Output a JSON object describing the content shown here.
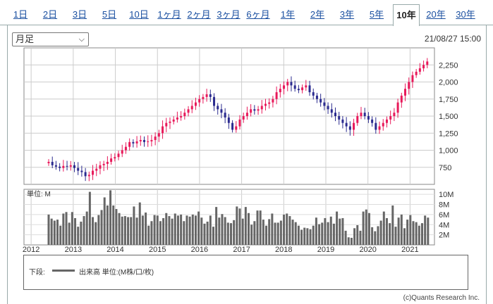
{
  "tabs": [
    {
      "label": "1日",
      "active": false
    },
    {
      "label": "2日",
      "active": false
    },
    {
      "label": "3日",
      "active": false
    },
    {
      "label": "5日",
      "active": false
    },
    {
      "label": "10日",
      "active": false
    },
    {
      "label": "1ヶ月",
      "active": false
    },
    {
      "label": "2ヶ月",
      "active": false
    },
    {
      "label": "3ヶ月",
      "active": false
    },
    {
      "label": "6ヶ月",
      "active": false
    },
    {
      "label": "1年",
      "active": false
    },
    {
      "label": "2年",
      "active": false
    },
    {
      "label": "3年",
      "active": false
    },
    {
      "label": "5年",
      "active": false
    },
    {
      "label": "10年",
      "active": true
    },
    {
      "label": "20年",
      "active": false
    },
    {
      "label": "30年",
      "active": false
    }
  ],
  "period_select": {
    "value": "月足"
  },
  "timestamp": "21/08/27 15:00",
  "chart_data": [
    {
      "type": "candlestick",
      "ylim": [
        500,
        2500
      ],
      "y_ticks": [
        "750",
        "1,000",
        "1,250",
        "1,500",
        "1,750",
        "2,000",
        "2,250"
      ],
      "y_tick_values": [
        750,
        1000,
        1250,
        1500,
        1750,
        2000,
        2250
      ],
      "start_year": 2011.83,
      "end_year": 2021.58,
      "up_color": "#e8195a",
      "down_color": "#2b2b8f",
      "approx_closes": [
        830,
        780,
        760,
        740,
        770,
        760,
        780,
        740,
        700,
        680,
        620,
        640,
        700,
        730,
        780,
        800,
        830,
        880,
        900,
        950,
        1000,
        1050,
        1120,
        1100,
        1130,
        1150,
        1120,
        1130,
        1150,
        1200,
        1250,
        1350,
        1400,
        1420,
        1450,
        1480,
        1500,
        1550,
        1600,
        1650,
        1700,
        1750,
        1780,
        1820,
        1780,
        1650,
        1600,
        1550,
        1480,
        1400,
        1300,
        1350,
        1450,
        1500,
        1550,
        1600,
        1580,
        1600,
        1650,
        1680,
        1700,
        1750,
        1850,
        1900,
        1950,
        2000,
        1950,
        1900,
        1880,
        1920,
        1950,
        1850,
        1800,
        1750,
        1700,
        1650,
        1600,
        1550,
        1500,
        1450,
        1400,
        1350,
        1300,
        1400,
        1500,
        1550,
        1500,
        1450,
        1400,
        1300,
        1350,
        1400,
        1450,
        1500,
        1550,
        1700,
        1800,
        1900,
        2000,
        2100,
        2150,
        2200,
        2250,
        2300
      ]
    },
    {
      "type": "bar",
      "unit_label": "単位: M",
      "y_ticks": [
        "2M",
        "4M",
        "6M",
        "8M",
        "10M"
      ],
      "y_tick_values": [
        2,
        4,
        6,
        8,
        10
      ],
      "ylim": [
        0,
        11
      ],
      "x_labels": [
        "2012",
        "2013",
        "2014",
        "2015",
        "2016",
        "2017",
        "2018",
        "2019",
        "2020",
        "2021"
      ],
      "bar_color": "#666666",
      "values": [
        6,
        5.2,
        4.8,
        5,
        3.8,
        6.2,
        6.5,
        4.4,
        6.5,
        5.3,
        3.6,
        4.6,
        5.7,
        6.6,
        10.5,
        5.5,
        4.5,
        5.9,
        6.9,
        9.4,
        7.8,
        10.8,
        7.8,
        7.1,
        6.3,
        5.6,
        5.7,
        5.5,
        5.5,
        7.6,
        5.4,
        8.4,
        5.8,
        6.4,
        3.8,
        4.7,
        5.9,
        5.8,
        4.7,
        5.3,
        6.3,
        5.7,
        5.2,
        6.2,
        5.8,
        6,
        4.7,
        5.8,
        5.6,
        6,
        5.8,
        6.6,
        5.4,
        4.2,
        4.6,
        5.8,
        3.6,
        7.5,
        5.4,
        6.1,
        5.5,
        4.4,
        4.3,
        4.9,
        7.6,
        7.2,
        5.2,
        7.5,
        6.3,
        4,
        4.7,
        6.8,
        6.8,
        5,
        3.8,
        5.1,
        6.2,
        4.4,
        4.4,
        4.8,
        6,
        6.2,
        5.7,
        5,
        4.5,
        3.8,
        3,
        3.4,
        3.3,
        3.1,
        3.8,
        5.4,
        4.1,
        4.4,
        5.3,
        4.5,
        5.6,
        4.2,
        6.6,
        5.2,
        5.3,
        2.8,
        1.5,
        1.4,
        3.3,
        3.9,
        2.8,
        6.6,
        7,
        6.3,
        3.5,
        2.7,
        3.7,
        4.8,
        6.6,
        5.3,
        4.3,
        7.8,
        3.6,
        5.4,
        6,
        3.3,
        5,
        5.9,
        4.7,
        4.5,
        3.8,
        4.3,
        5.8,
        5.4
      ]
    }
  ],
  "legend": {
    "prefix": "下段:",
    "text": "出来高 単位:(M株/口/枚)"
  },
  "credit": "(c)Quants Research Inc.",
  "icons": {
    "select_arrow": "chevron-down-icon"
  }
}
